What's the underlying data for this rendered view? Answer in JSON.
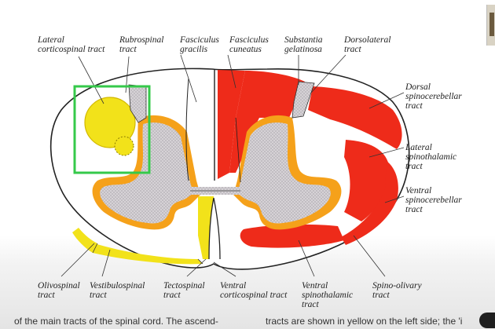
{
  "labels": {
    "lateral_corticospinal": [
      "Lateral",
      "corticospinal tract"
    ],
    "rubrospinal": [
      "Rubrospinal",
      "tract"
    ],
    "fasciculus_gracilis": [
      "Fasciculus",
      "gracilis"
    ],
    "fasciculus_cuneatus": [
      "Fasciculus",
      "cuneatus"
    ],
    "substantia_gelatinosa": [
      "Substantia",
      "gelatinosa"
    ],
    "dorsolateral": [
      "Dorsolateral",
      "tract"
    ],
    "dorsal_spinocerebellar": [
      "Dorsal",
      "spinocerebellar",
      "tract"
    ],
    "lateral_spinothalamic": [
      "Lateral",
      "spinothalamic",
      "tract"
    ],
    "ventral_spinocerebellar": [
      "Ventral",
      "spinocerebellar",
      "tract"
    ],
    "olivospinal": [
      "Olivospinal",
      "tract"
    ],
    "vestibulospinal": [
      "Vestibulospinal",
      "tract"
    ],
    "tectospinal": [
      "Tectospinal",
      "tract"
    ],
    "ventral_corticospinal": [
      "Ventral",
      "corticospinal tract"
    ],
    "ventral_spinothalamic": [
      "Ventral",
      "spinothalamic",
      "tract"
    ],
    "spino_olivary": [
      "Spino-olivary",
      "tract"
    ]
  },
  "caption": {
    "left": "of the main tracts of the spinal cord. The ascend-",
    "right": "tracts are shown in yellow on the left side; the 'i"
  },
  "colors": {
    "ascending_red": "#ee2b1a",
    "descending_yellow": "#f2e21a",
    "orange_rim": "#f5a11a",
    "grey_matter": "#d4d0d4",
    "highlight_box": "#35c94a",
    "outline": "#222222"
  }
}
